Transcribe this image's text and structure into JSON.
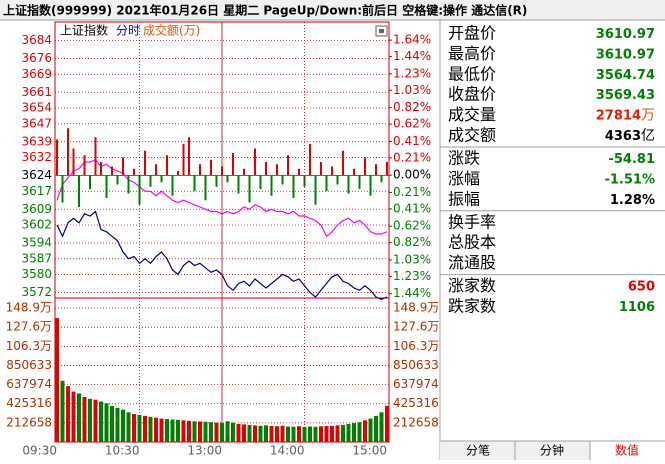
{
  "window": {
    "title": "上证指数(999999)  2021年01月26日 星期二 PageUp/Down:前后日 空格键:操作 通达信(R)"
  },
  "toolbar": {
    "items": [
      {
        "text": "上证指数",
        "color": "#000000"
      },
      {
        "text": "分时",
        "color": "#0000c0"
      },
      {
        "text": "成交额(万)",
        "color": "#e05000"
      }
    ]
  },
  "chart_data": [
    {
      "type": "line",
      "x": [
        0,
        4,
        8,
        12,
        16,
        20,
        24,
        28,
        32,
        36,
        40,
        44,
        48,
        52,
        56,
        60,
        64,
        68,
        72,
        76,
        80,
        84,
        88,
        92,
        96,
        100,
        104,
        108,
        112,
        116,
        120,
        124,
        128,
        132,
        136,
        140,
        144,
        148,
        152,
        156,
        160,
        164,
        168,
        172,
        176,
        180,
        184,
        188,
        192,
        196,
        200,
        204,
        208,
        212,
        216,
        220,
        224,
        228,
        232,
        236,
        240
      ],
      "xlim": [
        0,
        240
      ],
      "ylim": [
        3570,
        3686
      ],
      "yticks": [
        3684,
        3676,
        3669,
        3661,
        3654,
        3647,
        3639,
        3632,
        3624,
        3617,
        3609,
        3602,
        3594,
        3587,
        3580,
        3572
      ],
      "y2lim": [
        -1.48,
        1.69
      ],
      "y2ticks": [
        {
          "value": 1.64,
          "label": "1.64%"
        },
        {
          "value": 1.44,
          "label": "1.44%"
        },
        {
          "value": 1.23,
          "label": "1.23%"
        },
        {
          "value": 1.03,
          "label": "1.03%"
        },
        {
          "value": 0.82,
          "label": "0.82%"
        },
        {
          "value": 0.62,
          "label": "0.62%"
        },
        {
          "value": 0.41,
          "label": "0.41%"
        },
        {
          "value": 0.21,
          "label": "0.21%"
        },
        {
          "value": 0,
          "label": "0.00%"
        },
        {
          "value": -0.21,
          "label": "0.21%"
        },
        {
          "value": -0.41,
          "label": "0.41%"
        },
        {
          "value": -0.62,
          "label": "0.62%"
        },
        {
          "value": -0.82,
          "label": "0.82%"
        },
        {
          "value": -1.03,
          "label": "1.03%"
        },
        {
          "value": -1.23,
          "label": "1.23%"
        },
        {
          "value": -1.44,
          "label": "1.44%"
        }
      ],
      "grid": true,
      "up_color": "#e00000",
      "down_color": "#008000",
      "flat_color": "#000000",
      "series": [
        {
          "type": "line",
          "color": "#000080",
          "values": [
            3602,
            3597,
            3603,
            3605,
            3603,
            3607,
            3606,
            3608,
            3600,
            3599,
            3597,
            3595,
            3590,
            3587,
            3588,
            3585,
            3587,
            3585,
            3588,
            3590,
            3587,
            3582,
            3580,
            3584,
            3586,
            3584,
            3585,
            3583,
            3581,
            3582,
            3580,
            3575,
            3573,
            3576,
            3577,
            3575,
            3578,
            3576,
            3574,
            3576,
            3578,
            3580,
            3579,
            3577,
            3578,
            3575,
            3572,
            3570,
            3573,
            3576,
            3579,
            3580,
            3577,
            3576,
            3574,
            3573,
            3575,
            3573,
            3570,
            3569,
            3570
          ]
        },
        {
          "type": "line",
          "color": "#ff00ff",
          "values": [
            3613,
            3620,
            3623,
            3626,
            3627,
            3630,
            3630,
            3631,
            3628,
            3629,
            3627,
            3626,
            3625,
            3622,
            3621,
            3619,
            3617,
            3617,
            3615,
            3617,
            3615,
            3613,
            3612,
            3613,
            3612,
            3611,
            3610,
            3609,
            3608,
            3608,
            3607,
            3608,
            3607,
            3608,
            3610,
            3609,
            3611,
            3610,
            3608,
            3609,
            3608,
            3608,
            3607,
            3608,
            3606,
            3606,
            3605,
            3604,
            3602,
            3597,
            3599,
            3602,
            3604,
            3605,
            3603,
            3604,
            3602,
            3599,
            3598,
            3598,
            3599
          ]
        },
        {
          "type": "bar",
          "values": [
            3640,
            3612,
            3645,
            3636,
            3610,
            3633,
            3618,
            3641,
            3630,
            3614,
            3628,
            3620,
            3632,
            3616,
            3627,
            3611,
            3635,
            3619,
            3629,
            3621,
            3633,
            3615,
            3626,
            3638,
            3641,
            3617,
            3629,
            3613,
            3631,
            3619,
            3628,
            3621,
            3634,
            3616,
            3627,
            3612,
            3636,
            3618,
            3630,
            3615,
            3629,
            3620,
            3633,
            3614,
            3627,
            3619,
            3638,
            3611,
            3630,
            3617,
            3628,
            3620,
            3635,
            3616,
            3627,
            3618,
            3632,
            3615,
            3629,
            3621,
            3630
          ]
        }
      ]
    },
    {
      "type": "bar",
      "x": [
        0,
        4,
        8,
        12,
        16,
        20,
        24,
        28,
        32,
        36,
        40,
        44,
        48,
        52,
        56,
        60,
        64,
        68,
        72,
        76,
        80,
        84,
        88,
        92,
        96,
        100,
        104,
        108,
        112,
        116,
        120,
        124,
        128,
        132,
        136,
        140,
        144,
        148,
        152,
        156,
        160,
        164,
        168,
        172,
        176,
        180,
        184,
        188,
        192,
        196,
        200,
        204,
        208,
        212,
        216,
        220,
        224,
        228,
        232,
        236,
        240
      ],
      "xlim": [
        0,
        240
      ],
      "xticks": [
        {
          "value": 0,
          "label": "09:30"
        },
        {
          "value": 60,
          "label": "10:30"
        },
        {
          "value": 120,
          "label": "13:00"
        },
        {
          "value": 180,
          "label": "14:00"
        },
        {
          "value": 240,
          "label": "15:00"
        }
      ],
      "ylim": [
        0,
        1578000
      ],
      "yticks": [
        {
          "value": 1489000,
          "label": "148.9万"
        },
        {
          "value": 1276000,
          "label": "127.6万"
        },
        {
          "value": 1063000,
          "label": "106.3万"
        },
        850633,
        637974,
        425316,
        212658
      ],
      "grid": true,
      "up_color": "#e00000",
      "down_color": "#008000",
      "values": [
        1377000,
        680000,
        620000,
        560000,
        540000,
        500000,
        480000,
        470000,
        450000,
        430000,
        400000,
        380000,
        360000,
        330000,
        310000,
        300000,
        290000,
        280000,
        270000,
        260000,
        255000,
        250000,
        245000,
        240000,
        235000,
        230000,
        228000,
        225000,
        220000,
        215000,
        210000,
        230000,
        215000,
        200000,
        195000,
        190000,
        185000,
        180000,
        185000,
        178000,
        175000,
        180000,
        172000,
        170000,
        175000,
        168000,
        172000,
        170000,
        175000,
        178000,
        180000,
        185000,
        190000,
        200000,
        210000,
        220000,
        240000,
        260000,
        290000,
        330000,
        400000
      ]
    }
  ],
  "quote_panel": {
    "groups": [
      [
        {
          "label": "开盘价",
          "value": 3610.97,
          "color": "#008000"
        },
        {
          "label": "最高价",
          "value": 3610.97,
          "color": "#008000"
        },
        {
          "label": "最低价",
          "value": 3564.74,
          "color": "#008000"
        },
        {
          "label": "收盘价",
          "value": 3569.43,
          "color": "#008000"
        },
        {
          "label": "成交量",
          "value": 27814,
          "unit": "万",
          "color": "#e02000"
        },
        {
          "label": "成交额",
          "value": 4363,
          "unit": "亿",
          "color": "#000000"
        }
      ],
      [
        {
          "label": "涨跌",
          "value": -54.81,
          "color": "#008000"
        },
        {
          "label": "涨幅",
          "value": "-1.51%",
          "color": "#008000"
        },
        {
          "label": "振幅",
          "value": "1.28%",
          "color": "#000000"
        }
      ],
      [
        {
          "label": "换手率"
        },
        {
          "label": "总股本"
        },
        {
          "label": "流通股"
        }
      ],
      [
        {
          "label": "涨家数",
          "value": 650,
          "color": "#e00000"
        },
        {
          "label": "跌家数",
          "value": 1106,
          "color": "#008000"
        }
      ]
    ]
  },
  "tabs": [
    "分笔",
    "分钟",
    "数值"
  ]
}
